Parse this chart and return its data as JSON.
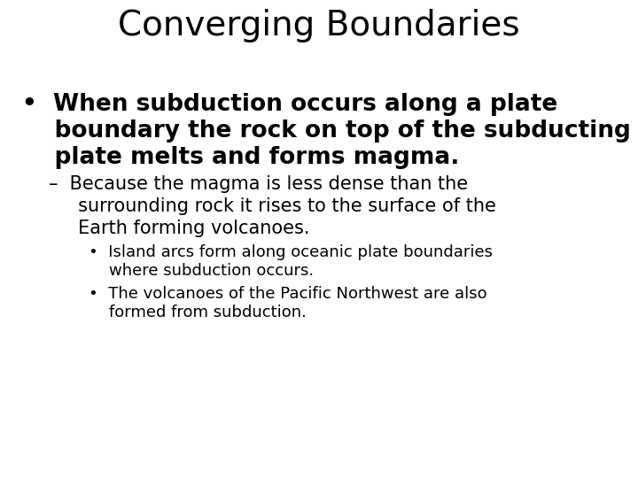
{
  "title": "Converging Boundaries",
  "title_fontsize": 28,
  "background_color": "#ffffff",
  "text_color": "#000000",
  "b1_line1": "•  When subduction occurs along a plate",
  "b1_line2": "    boundary the rock on top of the subducting",
  "b1_line3": "    plate melts and forms magma.",
  "b1_fontsize": 19,
  "sb1_line1": "–  Because the magma is less dense than the",
  "sb1_line2": "     surrounding rock it rises to the surface of the",
  "sb1_line3": "     Earth forming volcanoes.",
  "sb1_fontsize": 15,
  "ssb1_line1": "•  Island arcs form along oceanic plate boundaries",
  "ssb1_line2": "    where subduction occurs.",
  "ssb2_line1": "•  The volcanoes of the Pacific Northwest are also",
  "ssb2_line2": "    formed from subduction.",
  "ssb_fontsize": 13
}
